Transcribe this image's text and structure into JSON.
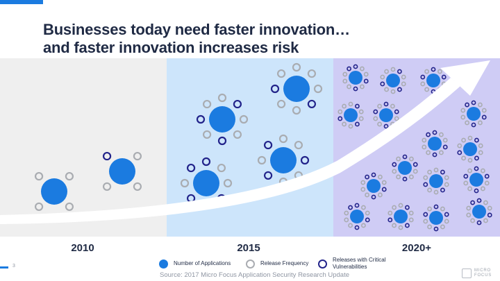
{
  "title": {
    "line1": "Businesses today need faster innovation…",
    "line2": "and faster innovation increases risk"
  },
  "eras": [
    "2010",
    "2015",
    "2020+"
  ],
  "legend": [
    {
      "label": "Number of Applications",
      "kind": "application"
    },
    {
      "label": "Release Frequency",
      "kind": "release"
    },
    {
      "label": "Releases with Critical Vulnerabilities",
      "kind": "critical"
    }
  ],
  "source": "Source: 2017 Micro Focus Application Security Research Update",
  "page_number": "3",
  "logo": {
    "line1": "MICRO",
    "line2": "FOCUS"
  },
  "colors": {
    "application": "#1b7be0",
    "release": "#a9acb1",
    "critical": "#22238a",
    "band_2010": "#efefef",
    "band_2015": "#cde5fb",
    "band_2020": "#cfccf5",
    "arrow": "#ffffff",
    "title": "#1f2a44",
    "accent": "#1b7be0"
  }
}
